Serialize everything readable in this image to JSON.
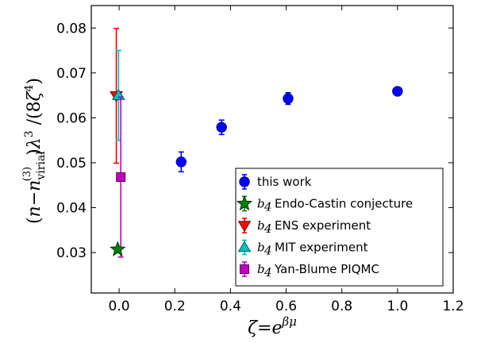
{
  "chart_data": {
    "type": "scatter",
    "xlabel": "ζ=e^βμ",
    "ylabel": "(n−n_virial^(3))λ³/(8ζ⁴)",
    "xlim": [
      -0.1,
      1.2
    ],
    "ylim": [
      0.021,
      0.085
    ],
    "x_ticks": [
      0.0,
      0.2,
      0.4,
      0.6,
      0.8,
      1.0,
      1.2
    ],
    "x_tick_labels": [
      "0.0",
      "0.2",
      "0.4",
      "0.6",
      "0.8",
      "1.0",
      "1.2"
    ],
    "y_ticks": [
      0.03,
      0.04,
      0.05,
      0.06,
      0.07,
      0.08
    ],
    "y_tick_labels": [
      "0.03",
      "0.04",
      "0.05",
      "0.06",
      "0.07",
      "0.08"
    ],
    "grid": false,
    "legend_position": "bottom-right",
    "series": [
      {
        "name": "this work",
        "legend_prefix": "",
        "marker": "circle",
        "color": "#0000ff",
        "edge_color": "#000080",
        "points": [
          {
            "x": 0.223,
            "y": 0.0502,
            "err": 0.0022
          },
          {
            "x": 0.368,
            "y": 0.0579,
            "err": 0.0016
          },
          {
            "x": 0.607,
            "y": 0.0643,
            "err": 0.0013
          },
          {
            "x": 1.0,
            "y": 0.0659,
            "err": 0.0004
          }
        ]
      },
      {
        "name": "Endo-Castin conjecture",
        "legend_prefix": "b",
        "marker": "star",
        "color": "#008000",
        "edge_color": "#003300",
        "points": [
          {
            "x": -0.005,
            "y": 0.0307,
            "err": 0
          }
        ]
      },
      {
        "name": "ENS experiment",
        "legend_prefix": "b",
        "marker": "triangle-down",
        "color": "#ff0000",
        "edge_color": "#800000",
        "points": [
          {
            "x": -0.01,
            "y": 0.0649,
            "err": 0.015
          }
        ]
      },
      {
        "name": "MIT experiment",
        "legend_prefix": "b",
        "marker": "triangle-up",
        "color": "#00bfbf",
        "edge_color": "#006060",
        "points": [
          {
            "x": -0.002,
            "y": 0.065,
            "err": 0.01
          }
        ]
      },
      {
        "name": "Yan-Blume PIQMC",
        "legend_prefix": "b",
        "marker": "square",
        "color": "#bf00bf",
        "edge_color": "#600060",
        "points": [
          {
            "x": 0.006,
            "y": 0.0468,
            "err": 0.0178
          }
        ]
      }
    ]
  }
}
